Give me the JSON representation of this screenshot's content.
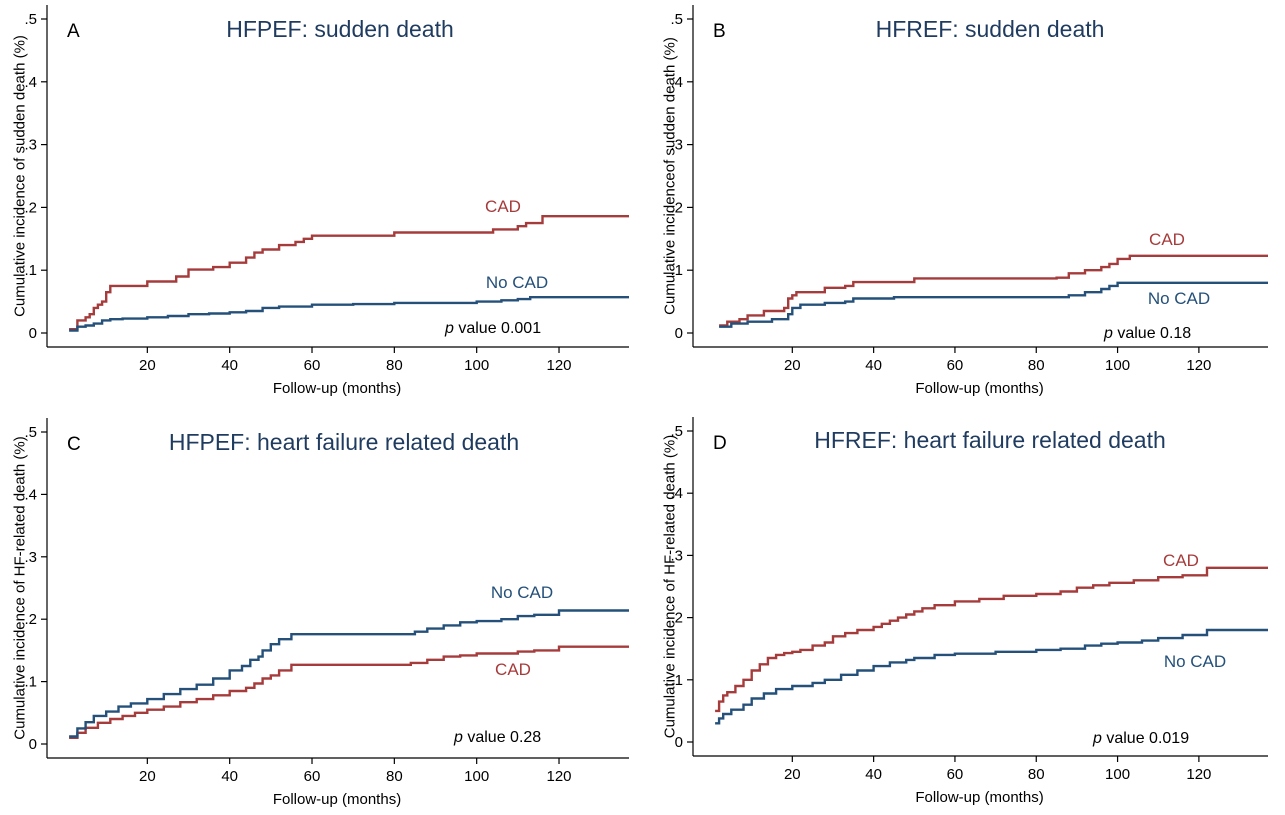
{
  "chart_data": [
    {
      "type": "line",
      "panel": "A",
      "title": "HFPEF: sudden death",
      "xlabel": "Follow-up (months)",
      "ylabel": "Cumulative incidence of sudden death (%)",
      "xlim": [
        0,
        137
      ],
      "ylim": [
        0,
        0.5
      ],
      "xticks": [
        "20",
        "40",
        "60",
        "80",
        "100",
        "120"
      ],
      "yticks": [
        "0",
        ".1",
        ".2",
        ".3",
        ".4",
        ".5"
      ],
      "p_value": {
        "prefix": "p",
        "text": "value 0.001"
      },
      "series": [
        {
          "name": "CAD",
          "color": "#a63b3b",
          "x": [
            1,
            3,
            5,
            6,
            7,
            8,
            9,
            10,
            11,
            13,
            16,
            20,
            24,
            27,
            30,
            36,
            40,
            44,
            46,
            48,
            52,
            56,
            58,
            60,
            64,
            68,
            72,
            80,
            90,
            100,
            104,
            106,
            110,
            112,
            116,
            137
          ],
          "y": [
            0.006,
            0.02,
            0.025,
            0.03,
            0.04,
            0.045,
            0.05,
            0.065,
            0.075,
            0.075,
            0.075,
            0.082,
            0.082,
            0.09,
            0.101,
            0.105,
            0.112,
            0.12,
            0.128,
            0.133,
            0.14,
            0.145,
            0.15,
            0.155,
            0.155,
            0.155,
            0.155,
            0.16,
            0.16,
            0.16,
            0.165,
            0.165,
            0.17,
            0.175,
            0.186,
            0.186
          ]
        },
        {
          "name": "No CAD",
          "color": "#24507a",
          "x": [
            1,
            3,
            5,
            7,
            9,
            11,
            14,
            20,
            25,
            30,
            35,
            40,
            44,
            48,
            52,
            60,
            70,
            80,
            90,
            100,
            106,
            110,
            113,
            137
          ],
          "y": [
            0.004,
            0.01,
            0.012,
            0.015,
            0.02,
            0.022,
            0.023,
            0.025,
            0.027,
            0.03,
            0.031,
            0.033,
            0.035,
            0.04,
            0.042,
            0.045,
            0.046,
            0.048,
            0.048,
            0.05,
            0.052,
            0.054,
            0.057,
            0.057
          ]
        }
      ]
    },
    {
      "type": "line",
      "panel": "B",
      "title": "HFREF: sudden death",
      "xlabel": "Follow-up (months)",
      "ylabel": "Cumulative incidenceof sudden death (%)",
      "xlim": [
        0,
        137
      ],
      "ylim": [
        0,
        0.5
      ],
      "xticks": [
        "20",
        "40",
        "60",
        "80",
        "100",
        "120"
      ],
      "yticks": [
        "0",
        ".1",
        ".2",
        ".3",
        ".4",
        ".5"
      ],
      "p_value": {
        "prefix": "p",
        "text": "value 0.18"
      },
      "series": [
        {
          "name": "CAD",
          "color": "#a63b3b",
          "x": [
            2,
            4,
            7,
            9,
            13,
            18,
            19,
            20,
            21,
            28,
            33,
            35,
            50,
            70,
            85,
            88,
            92,
            96,
            98,
            100,
            103,
            137
          ],
          "y": [
            0.012,
            0.018,
            0.022,
            0.028,
            0.035,
            0.04,
            0.055,
            0.06,
            0.065,
            0.072,
            0.075,
            0.081,
            0.087,
            0.087,
            0.088,
            0.095,
            0.1,
            0.105,
            0.11,
            0.118,
            0.123,
            0.123
          ]
        },
        {
          "name": "No CAD",
          "color": "#24507a",
          "x": [
            2,
            5,
            9,
            15,
            19,
            20,
            22,
            28,
            33,
            35,
            45,
            60,
            80,
            88,
            92,
            96,
            98,
            100,
            137
          ],
          "y": [
            0.01,
            0.015,
            0.018,
            0.022,
            0.03,
            0.04,
            0.045,
            0.048,
            0.05,
            0.055,
            0.057,
            0.057,
            0.057,
            0.06,
            0.065,
            0.07,
            0.075,
            0.08,
            0.08
          ]
        }
      ]
    },
    {
      "type": "line",
      "panel": "C",
      "title": "HFPEF: heart failure related death",
      "xlabel": "Follow-up (months)",
      "ylabel": "Cumulative incidence of HF-related death (%)",
      "xlim": [
        0,
        137
      ],
      "ylim": [
        0,
        0.5
      ],
      "xticks": [
        "20",
        "40",
        "60",
        "80",
        "100",
        "120"
      ],
      "yticks": [
        "0",
        ".1",
        ".2",
        ".3",
        ".4",
        ".5"
      ],
      "p_value": {
        "prefix": "p",
        "text": "value 0.28"
      },
      "series": [
        {
          "name": "CAD",
          "color": "#a63b3b",
          "x": [
            1,
            3,
            5,
            8,
            11,
            14,
            17,
            20,
            24,
            28,
            32,
            36,
            40,
            44,
            46,
            48,
            50,
            52,
            55,
            60,
            70,
            80,
            84,
            88,
            92,
            96,
            100,
            106,
            110,
            114,
            120,
            137
          ],
          "y": [
            0.01,
            0.018,
            0.026,
            0.034,
            0.04,
            0.045,
            0.05,
            0.055,
            0.06,
            0.067,
            0.072,
            0.078,
            0.085,
            0.09,
            0.097,
            0.105,
            0.11,
            0.118,
            0.127,
            0.127,
            0.127,
            0.127,
            0.13,
            0.135,
            0.14,
            0.142,
            0.145,
            0.145,
            0.148,
            0.15,
            0.156,
            0.156
          ]
        },
        {
          "name": "No CAD",
          "color": "#24507a",
          "x": [
            1,
            3,
            5,
            7,
            10,
            13,
            16,
            20,
            24,
            28,
            32,
            36,
            40,
            43,
            45,
            47,
            48,
            50,
            52,
            55,
            60,
            70,
            82,
            85,
            88,
            92,
            96,
            100,
            106,
            110,
            114,
            120,
            137
          ],
          "y": [
            0.012,
            0.025,
            0.035,
            0.045,
            0.052,
            0.06,
            0.065,
            0.072,
            0.08,
            0.088,
            0.095,
            0.105,
            0.118,
            0.125,
            0.135,
            0.14,
            0.15,
            0.16,
            0.168,
            0.176,
            0.176,
            0.176,
            0.176,
            0.18,
            0.185,
            0.19,
            0.195,
            0.197,
            0.2,
            0.205,
            0.207,
            0.214,
            0.214
          ]
        }
      ]
    },
    {
      "type": "line",
      "panel": "D",
      "title": "HFREF: heart failure related death",
      "xlabel": "Follow-up (months)",
      "ylabel": "Cumulative incidence of HF-related death (%)",
      "xlim": [
        0,
        137
      ],
      "ylim": [
        0,
        0.5
      ],
      "xticks": [
        "20",
        "40",
        "60",
        "80",
        "100",
        "120"
      ],
      "yticks": [
        "0",
        ".1",
        ".2",
        ".3",
        ".4",
        ".5"
      ],
      "p_value": {
        "prefix": "p",
        "text": "value 0.019"
      },
      "series": [
        {
          "name": "CAD",
          "color": "#a63b3b",
          "x": [
            1,
            2,
            3,
            4,
            6,
            8,
            10,
            12,
            14,
            16,
            18,
            20,
            22,
            25,
            28,
            30,
            33,
            36,
            40,
            42,
            44,
            46,
            48,
            50,
            52,
            55,
            60,
            66,
            72,
            80,
            86,
            90,
            94,
            98,
            104,
            110,
            116,
            122,
            137
          ],
          "y": [
            0.05,
            0.065,
            0.075,
            0.08,
            0.09,
            0.1,
            0.115,
            0.125,
            0.135,
            0.14,
            0.143,
            0.145,
            0.148,
            0.155,
            0.16,
            0.17,
            0.175,
            0.18,
            0.185,
            0.19,
            0.195,
            0.2,
            0.205,
            0.21,
            0.215,
            0.22,
            0.226,
            0.23,
            0.235,
            0.238,
            0.242,
            0.248,
            0.252,
            0.256,
            0.26,
            0.265,
            0.268,
            0.28,
            0.28
          ]
        },
        {
          "name": "No CAD",
          "color": "#24507a",
          "x": [
            1,
            2,
            3,
            5,
            8,
            10,
            13,
            16,
            20,
            25,
            28,
            32,
            36,
            40,
            44,
            48,
            50,
            55,
            60,
            70,
            80,
            86,
            92,
            96,
            100,
            106,
            110,
            116,
            122,
            137
          ],
          "y": [
            0.03,
            0.038,
            0.045,
            0.052,
            0.06,
            0.07,
            0.078,
            0.085,
            0.09,
            0.095,
            0.1,
            0.108,
            0.115,
            0.122,
            0.128,
            0.132,
            0.135,
            0.14,
            0.142,
            0.145,
            0.148,
            0.15,
            0.155,
            0.158,
            0.16,
            0.163,
            0.167,
            0.172,
            0.18,
            0.18
          ]
        }
      ]
    }
  ]
}
